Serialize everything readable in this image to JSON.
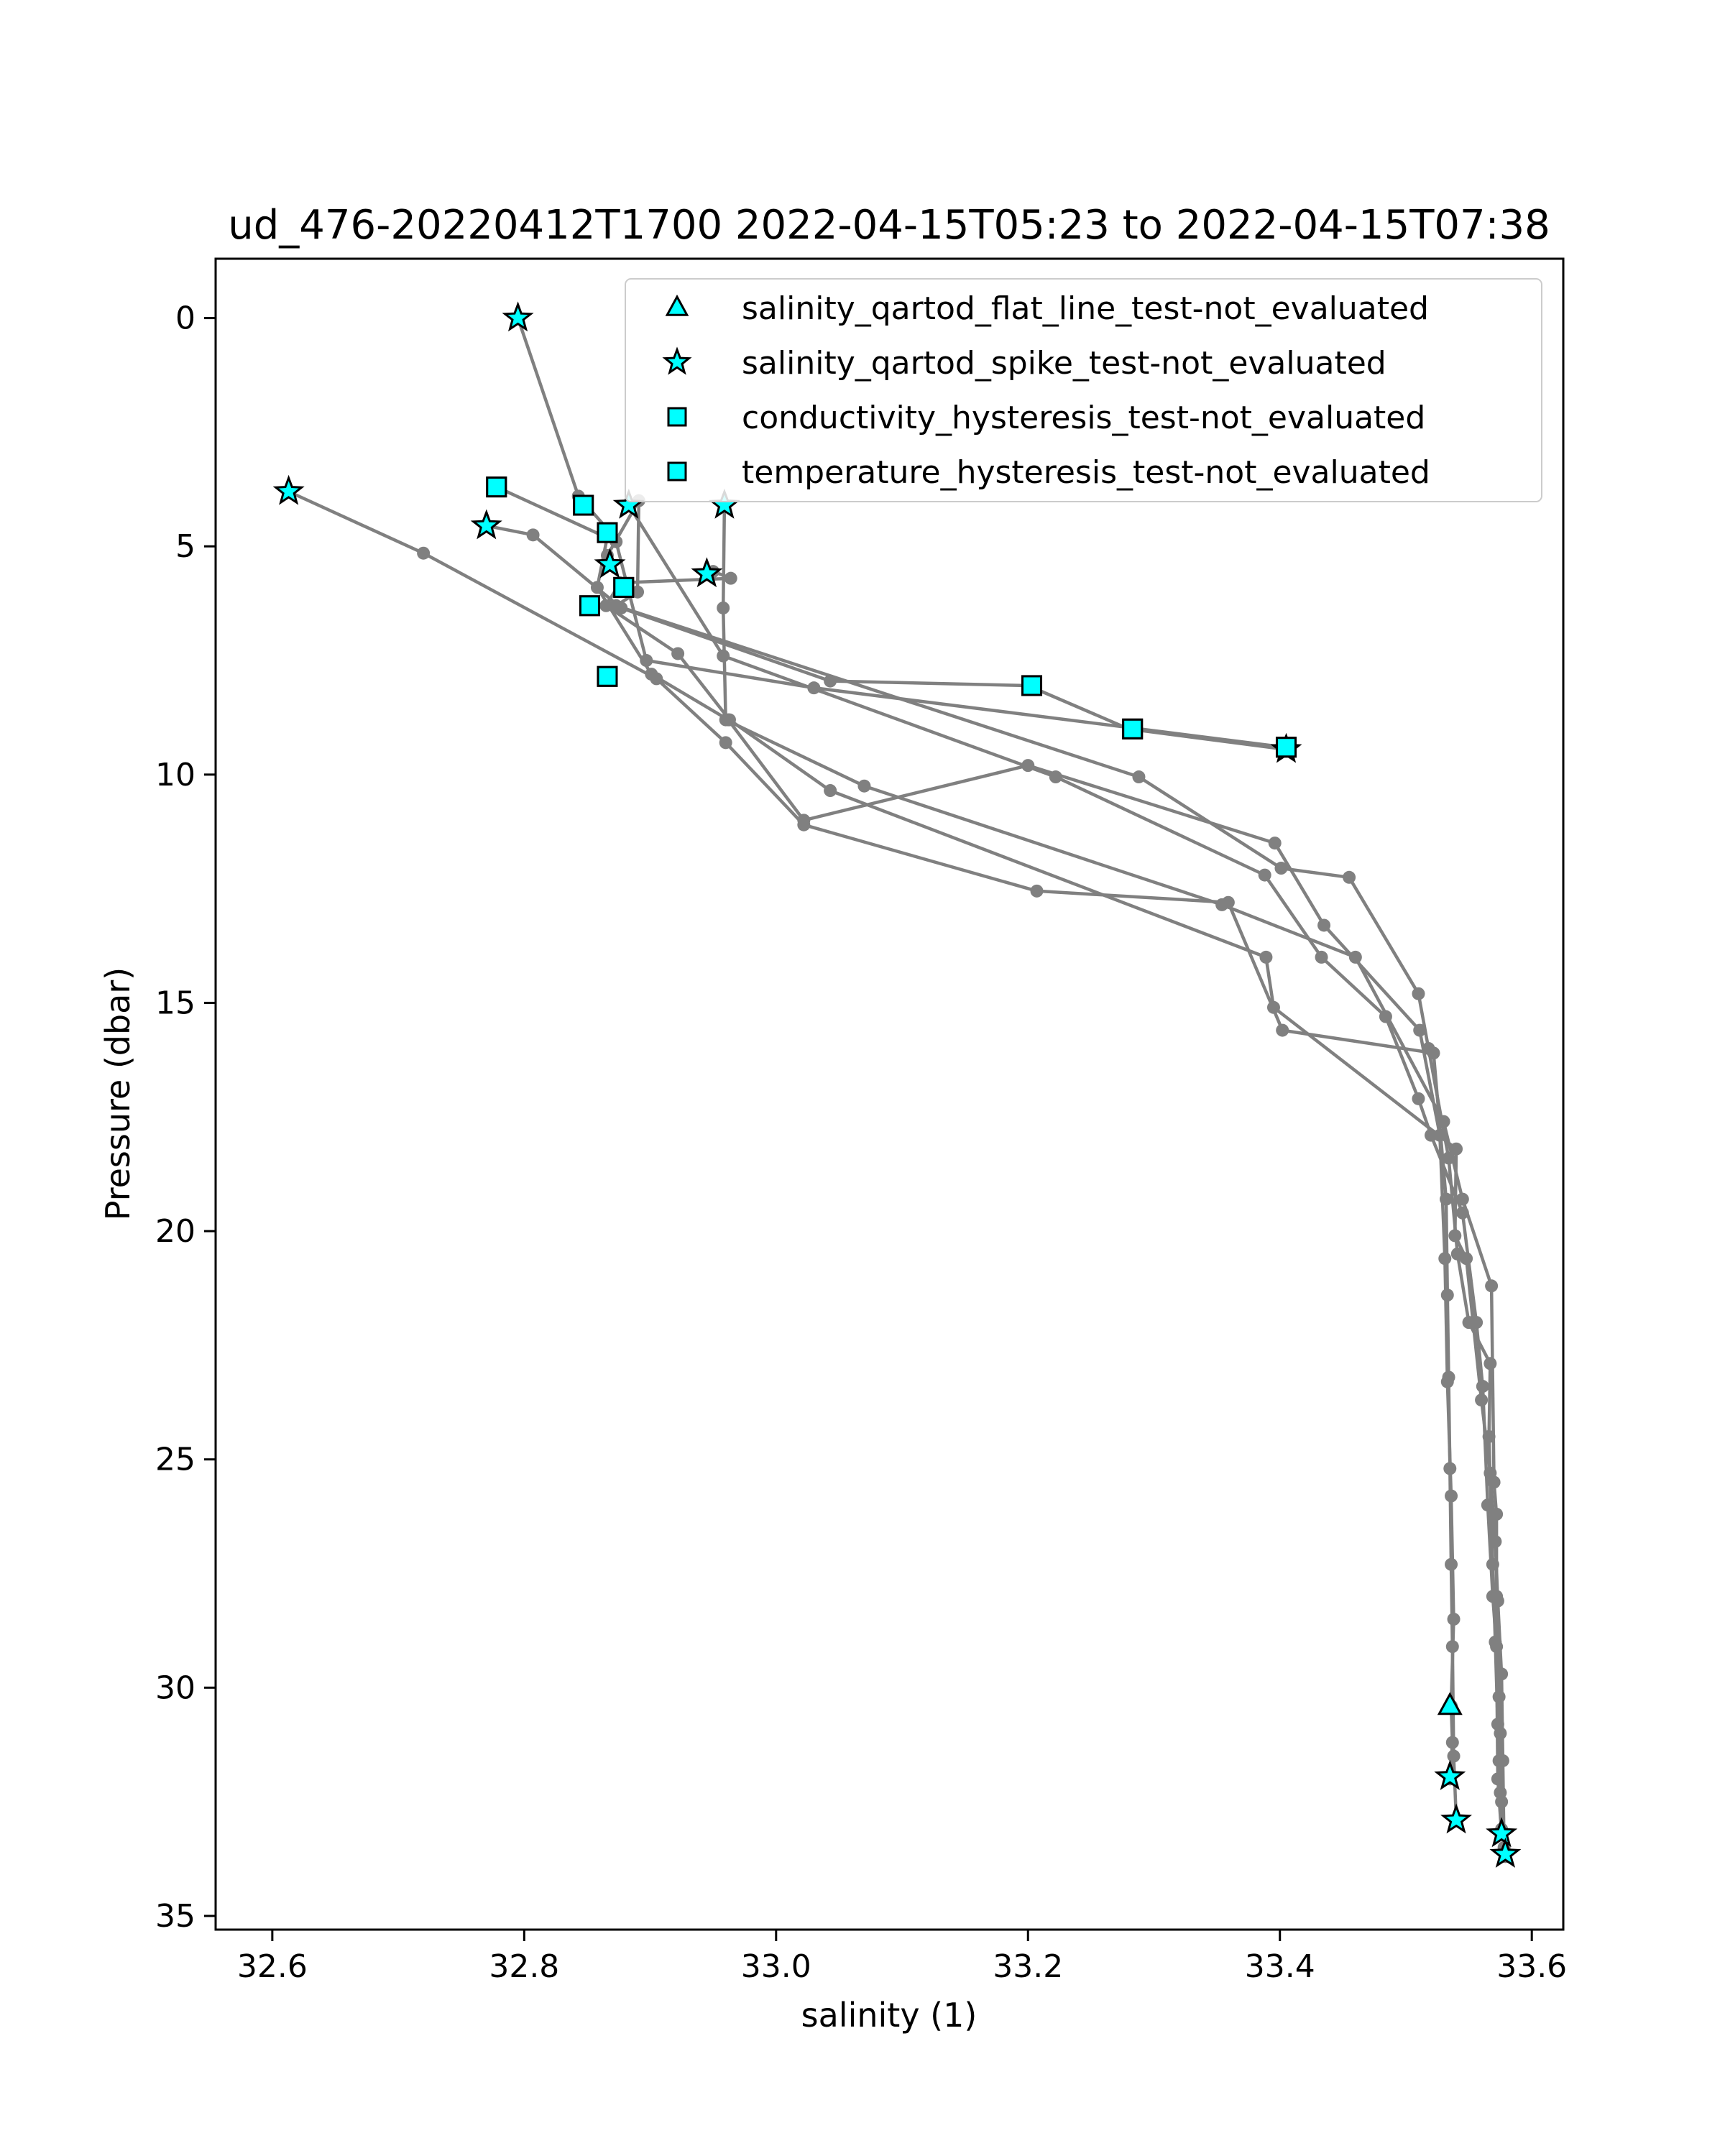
{
  "chart_data": {
    "type": "scatter",
    "title": "ud_476-20220412T1700 2022-04-15T05:23 to 2022-04-15T07:38",
    "xlabel": "salinity (1)",
    "ylabel": "Pressure (dbar)",
    "xlim": [
      32.555,
      33.625
    ],
    "ylim": [
      35.3,
      -1.3
    ],
    "y_inverted": true,
    "grid": false,
    "legend_position": "top-right",
    "xticks": [
      "32.6",
      "32.8",
      "33.0",
      "33.2",
      "33.4",
      "33.6"
    ],
    "yticks": [
      "0",
      "5",
      "10",
      "15",
      "20",
      "25",
      "30",
      "35"
    ],
    "colors": {
      "profile": "#808080",
      "flag": "#00ffff",
      "flag_edge": "#000000",
      "axes": "#000000"
    },
    "profiles": [
      {
        "points": [
          [
            32.795,
            0.0
          ],
          [
            32.843,
            3.9
          ],
          [
            32.867,
            4.65
          ],
          [
            32.858,
            5.9
          ],
          [
            32.901,
            7.8
          ],
          [
            32.962,
            8.8
          ],
          [
            33.022,
            11.0
          ],
          [
            33.2,
            9.8
          ],
          [
            33.396,
            11.5
          ],
          [
            33.435,
            13.3
          ],
          [
            33.511,
            15.6
          ],
          [
            33.527,
            17.9
          ],
          [
            33.531,
            20.6
          ],
          [
            33.533,
            23.3
          ],
          [
            33.536,
            25.8
          ],
          [
            33.538,
            28.5
          ],
          [
            33.536,
            30.4
          ],
          [
            33.537,
            31.2
          ],
          [
            33.535,
            32.0
          ]
        ]
      },
      {
        "points": [
          [
            32.613,
            3.8
          ],
          [
            32.72,
            5.15
          ],
          [
            32.905,
            7.9
          ],
          [
            32.96,
            9.3
          ],
          [
            33.022,
            11.1
          ],
          [
            33.207,
            12.55
          ],
          [
            33.359,
            12.8
          ],
          [
            33.402,
            15.6
          ],
          [
            33.522,
            16.1
          ],
          [
            33.532,
            19.3
          ],
          [
            33.533,
            21.4
          ],
          [
            33.534,
            23.2
          ],
          [
            33.535,
            25.2
          ],
          [
            33.536,
            27.3
          ],
          [
            33.537,
            29.1
          ],
          [
            33.538,
            31.5
          ],
          [
            33.54,
            32.9
          ]
        ]
      },
      {
        "points": [
          [
            32.77,
            4.55
          ],
          [
            32.807,
            4.75
          ],
          [
            32.877,
            6.35
          ],
          [
            33.043,
            7.95
          ],
          [
            33.2,
            8.05
          ],
          [
            33.28,
            9.0
          ],
          [
            33.405,
            9.45
          ]
        ]
      },
      {
        "points": [
          [
            32.778,
            3.7
          ],
          [
            32.873,
            4.9
          ],
          [
            32.897,
            7.5
          ],
          [
            33.03,
            8.1
          ],
          [
            33.404,
            9.4
          ]
        ]
      },
      {
        "points": [
          [
            32.95,
            5.55
          ],
          [
            32.964,
            5.7
          ],
          [
            32.876,
            5.8
          ],
          [
            32.865,
            6.3
          ],
          [
            32.922,
            7.35
          ],
          [
            32.963,
            8.8
          ],
          [
            33.043,
            10.35
          ],
          [
            33.389,
            14.0
          ],
          [
            33.395,
            15.1
          ],
          [
            33.54,
            18.2
          ],
          [
            33.539,
            20.1
          ],
          [
            33.548,
            20.6
          ],
          [
            33.56,
            23.7
          ],
          [
            33.567,
            25.3
          ],
          [
            33.571,
            26.8
          ],
          [
            33.573,
            28.1
          ],
          [
            33.576,
            29.7
          ],
          [
            33.577,
            31.6
          ],
          [
            33.578,
            33.5
          ]
        ]
      },
      {
        "points": [
          [
            32.959,
            4.1
          ],
          [
            32.958,
            6.35
          ],
          [
            32.96,
            8.8
          ],
          [
            33.07,
            10.25
          ],
          [
            33.354,
            12.85
          ],
          [
            33.46,
            14.0
          ],
          [
            33.53,
            17.6
          ],
          [
            33.545,
            19.3
          ],
          [
            33.568,
            21.2
          ],
          [
            33.57,
            25.5
          ],
          [
            33.572,
            26.2
          ],
          [
            33.572,
            28.0
          ],
          [
            33.574,
            30.2
          ],
          [
            33.575,
            31.0
          ],
          [
            33.575,
            32.3
          ],
          [
            33.576,
            33.1
          ],
          [
            33.579,
            33.7
          ]
        ]
      },
      {
        "points": [
          [
            32.883,
            4.1
          ],
          [
            32.958,
            7.4
          ],
          [
            33.222,
            10.05
          ],
          [
            33.388,
            12.2
          ],
          [
            33.433,
            14.0
          ],
          [
            33.484,
            15.3
          ],
          [
            33.51,
            17.1
          ],
          [
            33.52,
            17.9
          ],
          [
            33.545,
            19.6
          ],
          [
            33.556,
            22.0
          ],
          [
            33.561,
            23.4
          ],
          [
            33.565,
            26.0
          ],
          [
            33.569,
            28.0
          ],
          [
            33.572,
            29.1
          ],
          [
            33.573,
            32.0
          ],
          [
            33.576,
            33.2
          ]
        ]
      },
      {
        "points": [
          [
            32.866,
            5.2
          ],
          [
            32.891,
            4.0
          ],
          [
            32.89,
            6.0
          ],
          [
            32.873,
            6.3
          ],
          [
            33.288,
            10.05
          ],
          [
            33.401,
            12.05
          ],
          [
            33.455,
            12.25
          ],
          [
            33.51,
            14.8
          ],
          [
            33.518,
            16.0
          ],
          [
            33.534,
            18.4
          ],
          [
            33.541,
            20.5
          ],
          [
            33.55,
            22.0
          ],
          [
            33.567,
            22.9
          ],
          [
            33.566,
            24.5
          ],
          [
            33.569,
            27.3
          ],
          [
            33.571,
            29.0
          ],
          [
            33.573,
            30.8
          ],
          [
            33.574,
            31.6
          ],
          [
            33.576,
            32.5
          ],
          [
            33.579,
            33.65
          ]
        ]
      }
    ],
    "series": [
      {
        "name": "salinity_qartod_flat_line_test-not_evaluated",
        "marker": "triangle",
        "points": [
          [
            33.535,
            30.4
          ]
        ]
      },
      {
        "name": "salinity_qartod_spike_test-not_evaluated",
        "marker": "star",
        "points": [
          [
            32.795,
            0.0
          ],
          [
            32.613,
            3.8
          ],
          [
            32.77,
            4.55
          ],
          [
            32.883,
            4.1
          ],
          [
            32.959,
            4.1
          ],
          [
            32.868,
            5.4
          ],
          [
            32.945,
            5.6
          ],
          [
            33.405,
            9.45
          ],
          [
            33.535,
            31.95
          ],
          [
            33.54,
            32.9
          ],
          [
            33.576,
            33.2
          ],
          [
            33.579,
            33.65
          ]
        ]
      },
      {
        "name": "conductivity_hysteresis_test-not_evaluated",
        "marker": "square",
        "points": [
          [
            32.778,
            3.7
          ],
          [
            32.847,
            4.1
          ],
          [
            32.866,
            4.7
          ],
          [
            32.879,
            5.9
          ],
          [
            32.852,
            6.3
          ],
          [
            32.866,
            7.85
          ],
          [
            33.203,
            8.05
          ],
          [
            33.283,
            9.0
          ],
          [
            33.405,
            9.4
          ]
        ]
      },
      {
        "name": "temperature_hysteresis_test-not_evaluated",
        "marker": "square",
        "points": [
          [
            32.778,
            3.7
          ],
          [
            32.847,
            4.1
          ],
          [
            32.866,
            4.7
          ],
          [
            32.879,
            5.9
          ],
          [
            32.852,
            6.3
          ],
          [
            32.866,
            7.85
          ],
          [
            33.203,
            8.05
          ],
          [
            33.283,
            9.0
          ],
          [
            33.405,
            9.4
          ]
        ]
      }
    ]
  }
}
